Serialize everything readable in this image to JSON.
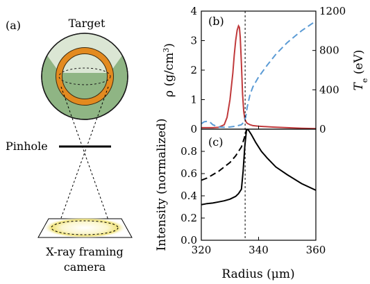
{
  "schematic": {
    "panel_label": "(a)",
    "target_label": "Target",
    "pinhole_label": "Pinhole",
    "camera_label_line1": "X-ray framing",
    "camera_label_line2": "camera",
    "colors": {
      "shell": "#e38a1f",
      "shell_edge": "#3a2a10",
      "disk": "#8fb584",
      "disk_light": "#dfe9d8",
      "glow": "#f5eaa0"
    }
  },
  "chart_data": [
    {
      "type": "line",
      "panel_label": "(b)",
      "xlim": [
        320,
        360
      ],
      "ylim": [
        0,
        4
      ],
      "ylim_right": [
        0,
        1200
      ],
      "xlabel": "",
      "ylabel": "ρ (g/cm³)",
      "ylabel_right": "Te (eV)",
      "yticks": [
        0,
        1,
        2,
        3,
        4
      ],
      "yticks_right": [
        0,
        400,
        800,
        1200
      ],
      "series": [
        {
          "axis": "left",
          "color": "#c0393b",
          "dash": "solid",
          "x": [
            320,
            322,
            324,
            326,
            328,
            329,
            330,
            331,
            331.5,
            332,
            332.5,
            333,
            333.3,
            333.6,
            334,
            334.4,
            334.8,
            335.2,
            335.6,
            336,
            337,
            338,
            340,
            345,
            350,
            355,
            360
          ],
          "y": [
            0.05,
            0.05,
            0.05,
            0.06,
            0.15,
            0.4,
            1.0,
            1.9,
            2.5,
            3.0,
            3.35,
            3.5,
            3.45,
            3.1,
            2.2,
            1.2,
            0.6,
            0.35,
            0.25,
            0.2,
            0.15,
            0.12,
            0.1,
            0.07,
            0.05,
            0.03,
            0.02
          ]
        },
        {
          "axis": "right",
          "color": "#5b9bd5",
          "dash": "dashed",
          "x": [
            320,
            321,
            322,
            323,
            324,
            326,
            328,
            330,
            332,
            334,
            334.8,
            335.5,
            336,
            337,
            338,
            340,
            343,
            346,
            350,
            355,
            360
          ],
          "y": [
            55,
            75,
            80,
            72,
            45,
            22,
            20,
            22,
            30,
            45,
            70,
            120,
            220,
            350,
            430,
            530,
            650,
            760,
            880,
            1000,
            1100
          ]
        }
      ]
    },
    {
      "type": "line",
      "panel_label": "(c)",
      "xlim": [
        320,
        360
      ],
      "ylim": [
        0,
        1
      ],
      "xlabel": "Radius (μm)",
      "ylabel": "Intensity (normalized)",
      "xticks": [
        320,
        340,
        360
      ],
      "yticks": [
        0.0,
        0.2,
        0.4,
        0.6,
        0.8
      ],
      "series": [
        {
          "color": "#000000",
          "dash": "dashed",
          "x": [
            320,
            322,
            324,
            326,
            328,
            330,
            332,
            334,
            335,
            335.8
          ],
          "y": [
            0.54,
            0.56,
            0.59,
            0.62,
            0.66,
            0.7,
            0.76,
            0.84,
            0.92,
            1.0
          ]
        },
        {
          "color": "#000000",
          "dash": "solid",
          "x": [
            320,
            322,
            324,
            326,
            328,
            330,
            332,
            333,
            334,
            334.6,
            335.2,
            335.8,
            336.5,
            337.5,
            339,
            341,
            343,
            346,
            350,
            355,
            360
          ],
          "y": [
            0.32,
            0.33,
            0.335,
            0.345,
            0.355,
            0.37,
            0.395,
            0.42,
            0.46,
            0.62,
            0.85,
            1.0,
            0.99,
            0.95,
            0.88,
            0.8,
            0.74,
            0.66,
            0.59,
            0.51,
            0.45
          ]
        }
      ]
    }
  ],
  "marker_line_x": 335.3
}
